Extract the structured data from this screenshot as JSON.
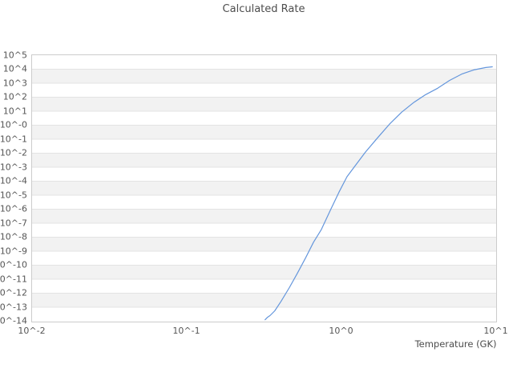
{
  "page": {
    "background": "#ffffff"
  },
  "chart_data": {
    "type": "line",
    "title": "Calculated Rate",
    "xlabel": "Temperature (GK)",
    "ylabel": "",
    "x_scale": "log10",
    "y_scale": "log10",
    "xlim": [
      0.01,
      10
    ],
    "ylim": [
      1e-14,
      100000.0
    ],
    "xlim_log": [
      -2,
      1
    ],
    "ylim_log": [
      -14,
      5
    ],
    "grid": {
      "horizontal_bands": true,
      "vertical_lines": false,
      "band_color": "#f2f2f2",
      "line_color": "#e3e3e3",
      "border_color": "#cccccc"
    },
    "legend": "none",
    "x_ticks": [
      {
        "log": -2,
        "label": "10^-2"
      },
      {
        "log": -1,
        "label": "10^-1"
      },
      {
        "log": 0,
        "label": "10^0"
      },
      {
        "log": 1,
        "label": "10^1"
      }
    ],
    "y_ticks": [
      {
        "log": 5,
        "label": "10^5"
      },
      {
        "log": 4,
        "label": "10^4"
      },
      {
        "log": 3,
        "label": "10^3"
      },
      {
        "log": 2,
        "label": "10^2"
      },
      {
        "log": 1,
        "label": "10^1"
      },
      {
        "log": 0,
        "label": "10^-0"
      },
      {
        "log": -1,
        "label": "10^-1"
      },
      {
        "log": -2,
        "label": "10^-2"
      },
      {
        "log": -3,
        "label": "10^-3"
      },
      {
        "log": -4,
        "label": "10^-4"
      },
      {
        "log": -5,
        "label": "10^-5"
      },
      {
        "log": -6,
        "label": "10^-6"
      },
      {
        "log": -7,
        "label": "10^-7"
      },
      {
        "log": -8,
        "label": "10^-8"
      },
      {
        "log": -9,
        "label": "10^-9"
      },
      {
        "log": -10,
        "label": "10^-10"
      },
      {
        "log": -11,
        "label": "10^-11"
      },
      {
        "log": -12,
        "label": "10^-12"
      },
      {
        "log": -13,
        "label": "10^-13"
      },
      {
        "log": -14,
        "label": "10^-14"
      }
    ],
    "series": [
      {
        "name": "calculated-rate",
        "color": "#6496dc",
        "points_log10": [
          [
            -0.494,
            -13.9
          ],
          [
            -0.478,
            -13.72
          ],
          [
            -0.462,
            -13.6
          ],
          [
            -0.431,
            -13.26
          ],
          [
            -0.39,
            -12.58
          ],
          [
            -0.337,
            -11.6
          ],
          [
            -0.285,
            -10.58
          ],
          [
            -0.233,
            -9.5
          ],
          [
            -0.181,
            -8.36
          ],
          [
            -0.13,
            -7.45
          ],
          [
            -0.067,
            -5.96
          ],
          [
            -0.016,
            -4.78
          ],
          [
            0.036,
            -3.68
          ],
          [
            0.078,
            -3.05
          ],
          [
            0.155,
            -1.92
          ],
          [
            0.233,
            -0.9
          ],
          [
            0.311,
            0.08
          ],
          [
            0.389,
            0.93
          ],
          [
            0.466,
            1.61
          ],
          [
            0.544,
            2.18
          ],
          [
            0.622,
            2.64
          ],
          [
            0.699,
            3.2
          ],
          [
            0.777,
            3.65
          ],
          [
            0.855,
            3.95
          ],
          [
            0.933,
            4.12
          ],
          [
            0.975,
            4.17
          ]
        ]
      }
    ]
  }
}
